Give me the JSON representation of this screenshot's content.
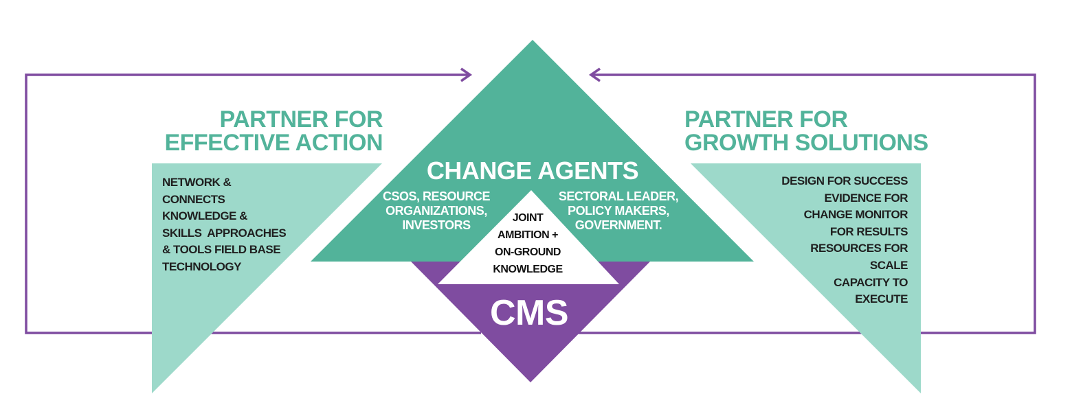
{
  "diagram": {
    "left_heading": [
      "PARTNER FOR",
      "EFFECTIVE ACTION"
    ],
    "left_body": [
      "NETWORK &",
      "CONNECTS",
      "KNOWLEDGE &",
      "SKILLS  APPROACHES",
      "& TOOLS FIELD BASE",
      "TECHNOLOGY"
    ],
    "right_heading": [
      "PARTNER FOR",
      "GROWTH SOLUTIONS"
    ],
    "right_body": [
      "DESIGN FOR SUCCESS",
      "EVIDENCE FOR",
      "CHANGE MONITOR",
      "FOR RESULTS",
      "RESOURCES FOR",
      "SCALE",
      "CAPACITY TO",
      "EXECUTE"
    ],
    "center_title": "CHANGE AGENTS",
    "center_left": [
      "CSOS, RESOURCE",
      "ORGANIZATIONS,",
      "INVESTORS"
    ],
    "center_right": [
      "SECTORAL LEADER,",
      "POLICY MAKERS,",
      "GOVERNMENT."
    ],
    "inner_triangle": [
      "JOINT",
      "AMBITION +",
      "ON-GROUND",
      "KNOWLEDGE"
    ],
    "bottom_label": "CMS"
  },
  "colors": {
    "teal_dark": "#52b39a",
    "teal_light": "#9dd9ca",
    "purple": "#7f4ca0",
    "white": "#ffffff",
    "text_dark": "#1f1f1f"
  }
}
